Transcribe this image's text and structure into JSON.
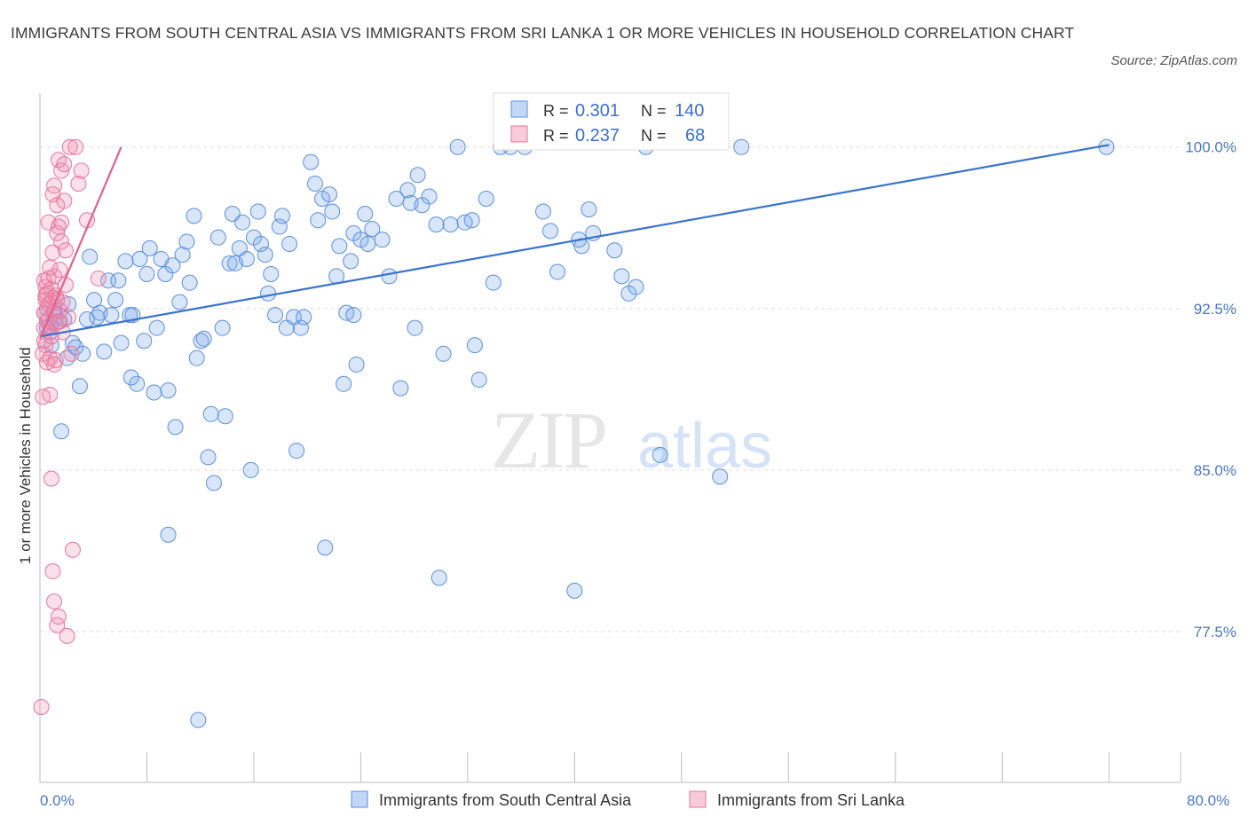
{
  "header": {
    "title": "IMMIGRANTS FROM SOUTH CENTRAL ASIA VS IMMIGRANTS FROM SRI LANKA 1 OR MORE VEHICLES IN HOUSEHOLD CORRELATION CHART",
    "source": "Source: ZipAtlas.com"
  },
  "watermark": {
    "zip": "ZIP",
    "atlas": "atlas"
  },
  "colors": {
    "blue": "#5b8fe0",
    "blue_fill": "rgba(120,165,235,0.28)",
    "blue_line": "#3b73cc",
    "pink": "#e8769c",
    "pink_fill": "rgba(240,140,175,0.28)",
    "pink_line": "#e0608d",
    "axis_text": "#4a78c4",
    "grid": "#dddddd"
  },
  "legend": {
    "rows": [
      {
        "r_label": "R = ",
        "r_value": "0.301",
        "n_label": "N = ",
        "n_value": "140",
        "color": "blue"
      },
      {
        "r_label": "R = ",
        "r_value": "0.237",
        "n_label": "N = ",
        "n_value": "68",
        "color": "pink"
      }
    ]
  },
  "chart_data": {
    "type": "scatter",
    "xlabel": "",
    "ylabel": "1 or more Vehicles in Household",
    "xlim": [
      0,
      80
    ],
    "ylim": [
      70.5,
      102.5
    ],
    "x_tick_labels": {
      "min": "0.0%",
      "max": "80.0%"
    },
    "y_ticks": [
      {
        "value": 100.0,
        "label": "100.0%"
      },
      {
        "value": 92.5,
        "label": "92.5%"
      },
      {
        "value": 85.0,
        "label": "85.0%"
      },
      {
        "value": 77.5,
        "label": "77.5%"
      }
    ],
    "x_minor_ticks": [
      7.5,
      15,
      22.5,
      30,
      37.5,
      45,
      52.5,
      60,
      67.5,
      75,
      80
    ],
    "series": [
      {
        "name": "Immigrants from South Central Asia",
        "color": "blue",
        "trend": {
          "x": [
            0,
            75.0
          ],
          "y": [
            91.2,
            100.1
          ]
        },
        "points": [
          [
            0.3,
            92.3
          ],
          [
            0.5,
            91.6
          ],
          [
            0.7,
            91.7
          ],
          [
            0.8,
            90.8
          ],
          [
            1.0,
            92.4
          ],
          [
            1.1,
            92.1
          ],
          [
            1.3,
            91.9
          ],
          [
            1.5,
            86.8
          ],
          [
            1.7,
            92.0
          ],
          [
            1.9,
            90.2
          ],
          [
            2.0,
            92.7
          ],
          [
            2.3,
            90.9
          ],
          [
            2.5,
            90.7
          ],
          [
            2.8,
            88.9
          ],
          [
            3.0,
            90.4
          ],
          [
            3.3,
            92.0
          ],
          [
            3.5,
            94.9
          ],
          [
            3.8,
            92.9
          ],
          [
            4.0,
            92.1
          ],
          [
            4.2,
            92.3
          ],
          [
            4.5,
            90.5
          ],
          [
            4.8,
            93.8
          ],
          [
            5.0,
            92.2
          ],
          [
            5.3,
            92.9
          ],
          [
            5.5,
            93.8
          ],
          [
            5.7,
            90.9
          ],
          [
            6.0,
            94.7
          ],
          [
            6.3,
            92.2
          ],
          [
            6.5,
            92.2
          ],
          [
            6.8,
            89.0
          ],
          [
            7.0,
            94.8
          ],
          [
            7.3,
            91.0
          ],
          [
            7.5,
            94.1
          ],
          [
            7.7,
            95.3
          ],
          [
            8.0,
            88.6
          ],
          [
            8.2,
            91.6
          ],
          [
            8.5,
            94.8
          ],
          [
            8.8,
            94.1
          ],
          [
            9.0,
            88.7
          ],
          [
            9.3,
            94.5
          ],
          [
            9.5,
            87.0
          ],
          [
            9.8,
            92.8
          ],
          [
            10.0,
            95.0
          ],
          [
            10.3,
            95.6
          ],
          [
            10.5,
            93.7
          ],
          [
            10.8,
            96.8
          ],
          [
            11.0,
            90.2
          ],
          [
            11.3,
            91.0
          ],
          [
            11.5,
            91.1
          ],
          [
            11.8,
            85.6
          ],
          [
            12.0,
            87.6
          ],
          [
            12.2,
            84.4
          ],
          [
            12.5,
            95.8
          ],
          [
            12.8,
            91.6
          ],
          [
            13.0,
            87.5
          ],
          [
            13.3,
            94.6
          ],
          [
            13.5,
            96.9
          ],
          [
            13.7,
            94.6
          ],
          [
            14.0,
            95.3
          ],
          [
            14.2,
            96.5
          ],
          [
            14.5,
            94.8
          ],
          [
            14.8,
            85.0
          ],
          [
            15.0,
            95.8
          ],
          [
            15.3,
            97.0
          ],
          [
            15.5,
            95.5
          ],
          [
            15.8,
            95.0
          ],
          [
            16.0,
            93.2
          ],
          [
            16.2,
            94.1
          ],
          [
            16.5,
            92.2
          ],
          [
            16.8,
            96.3
          ],
          [
            17.0,
            96.8
          ],
          [
            17.3,
            91.6
          ],
          [
            17.5,
            95.5
          ],
          [
            17.8,
            92.1
          ],
          [
            18.0,
            85.9
          ],
          [
            18.3,
            91.6
          ],
          [
            18.5,
            92.1
          ],
          [
            19.0,
            99.3
          ],
          [
            19.3,
            98.3
          ],
          [
            19.5,
            96.6
          ],
          [
            19.8,
            97.6
          ],
          [
            20.0,
            81.4
          ],
          [
            20.3,
            97.8
          ],
          [
            20.5,
            97.0
          ],
          [
            20.8,
            94.0
          ],
          [
            21.0,
            95.4
          ],
          [
            21.3,
            89.0
          ],
          [
            21.5,
            92.3
          ],
          [
            21.8,
            94.7
          ],
          [
            22.0,
            96.0
          ],
          [
            22.2,
            89.9
          ],
          [
            22.5,
            95.7
          ],
          [
            22.8,
            96.9
          ],
          [
            23.0,
            95.5
          ],
          [
            23.3,
            96.2
          ],
          [
            24.0,
            95.7
          ],
          [
            24.5,
            94.0
          ],
          [
            25.0,
            97.6
          ],
          [
            25.3,
            88.8
          ],
          [
            25.8,
            98.0
          ],
          [
            26.0,
            97.4
          ],
          [
            26.3,
            91.6
          ],
          [
            26.5,
            98.7
          ],
          [
            26.8,
            97.3
          ],
          [
            27.3,
            97.7
          ],
          [
            27.8,
            96.4
          ],
          [
            28.0,
            80.0
          ],
          [
            28.3,
            90.4
          ],
          [
            28.8,
            96.4
          ],
          [
            29.3,
            100.0
          ],
          [
            29.8,
            96.5
          ],
          [
            30.3,
            96.6
          ],
          [
            30.5,
            90.8
          ],
          [
            30.8,
            89.2
          ],
          [
            31.3,
            97.6
          ],
          [
            31.8,
            93.7
          ],
          [
            32.3,
            100.0
          ],
          [
            33.0,
            100.0
          ],
          [
            34.0,
            100.0
          ],
          [
            35.3,
            97.0
          ],
          [
            35.8,
            96.1
          ],
          [
            36.3,
            94.2
          ],
          [
            37.5,
            79.4
          ],
          [
            37.8,
            95.7
          ],
          [
            38.0,
            95.4
          ],
          [
            38.5,
            97.1
          ],
          [
            38.8,
            96.0
          ],
          [
            40.3,
            95.2
          ],
          [
            40.8,
            94.0
          ],
          [
            41.3,
            93.2
          ],
          [
            41.8,
            93.5
          ],
          [
            42.5,
            100.0
          ],
          [
            43.5,
            85.7
          ],
          [
            47.7,
            84.7
          ],
          [
            49.2,
            100.0
          ],
          [
            74.8,
            100.0
          ],
          [
            11.1,
            73.4
          ],
          [
            9.0,
            82.0
          ],
          [
            6.4,
            89.3
          ],
          [
            22.0,
            92.2
          ]
        ]
      },
      {
        "name": "Immigrants from Sri Lanka",
        "color": "pink",
        "trend": {
          "x": [
            0,
            5.7
          ],
          "y": [
            91.1,
            100.0
          ]
        },
        "points": [
          [
            0.1,
            74.0
          ],
          [
            0.2,
            88.4
          ],
          [
            0.2,
            90.4
          ],
          [
            0.3,
            91.6
          ],
          [
            0.3,
            92.3
          ],
          [
            0.3,
            93.8
          ],
          [
            0.4,
            92.9
          ],
          [
            0.4,
            93.5
          ],
          [
            0.4,
            90.8
          ],
          [
            0.5,
            91.9
          ],
          [
            0.5,
            92.5
          ],
          [
            0.5,
            93.2
          ],
          [
            0.6,
            93.9
          ],
          [
            0.6,
            92.0
          ],
          [
            0.6,
            96.5
          ],
          [
            0.7,
            88.5
          ],
          [
            0.7,
            90.2
          ],
          [
            0.7,
            91.4
          ],
          [
            0.8,
            92.8
          ],
          [
            0.8,
            93.4
          ],
          [
            0.8,
            84.6
          ],
          [
            0.9,
            95.1
          ],
          [
            0.9,
            97.8
          ],
          [
            0.9,
            80.3
          ],
          [
            1.0,
            92.3
          ],
          [
            1.0,
            94.0
          ],
          [
            1.0,
            98.2
          ],
          [
            1.0,
            78.9
          ],
          [
            1.1,
            90.1
          ],
          [
            1.1,
            91.8
          ],
          [
            1.1,
            93.1
          ],
          [
            1.2,
            96.0
          ],
          [
            1.2,
            97.3
          ],
          [
            1.2,
            77.8
          ],
          [
            1.3,
            99.4
          ],
          [
            1.3,
            96.3
          ],
          [
            1.3,
            78.2
          ],
          [
            1.4,
            94.3
          ],
          [
            1.4,
            92.4
          ],
          [
            1.5,
            95.6
          ],
          [
            1.5,
            98.9
          ],
          [
            1.5,
            96.5
          ],
          [
            1.6,
            92.8
          ],
          [
            1.6,
            91.4
          ],
          [
            1.7,
            97.5
          ],
          [
            1.7,
            99.2
          ],
          [
            1.8,
            93.6
          ],
          [
            1.8,
            95.2
          ],
          [
            1.9,
            77.3
          ],
          [
            2.0,
            92.1
          ],
          [
            2.1,
            100.0
          ],
          [
            2.2,
            90.4
          ],
          [
            2.3,
            81.3
          ],
          [
            2.5,
            100.0
          ],
          [
            2.7,
            98.3
          ],
          [
            2.9,
            98.9
          ],
          [
            3.3,
            96.6
          ],
          [
            4.1,
            93.9
          ],
          [
            0.3,
            91.0
          ],
          [
            0.5,
            90.0
          ],
          [
            0.7,
            94.4
          ],
          [
            0.9,
            93.0
          ],
          [
            1.2,
            92.9
          ],
          [
            0.4,
            93.1
          ],
          [
            0.6,
            92.7
          ],
          [
            0.8,
            91.2
          ],
          [
            1.0,
            89.9
          ],
          [
            1.4,
            91.9
          ]
        ]
      }
    ]
  },
  "bottom_legend": [
    {
      "label": "Immigrants from South Central Asia",
      "color": "blue"
    },
    {
      "label": "Immigrants from Sri Lanka",
      "color": "pink"
    }
  ]
}
